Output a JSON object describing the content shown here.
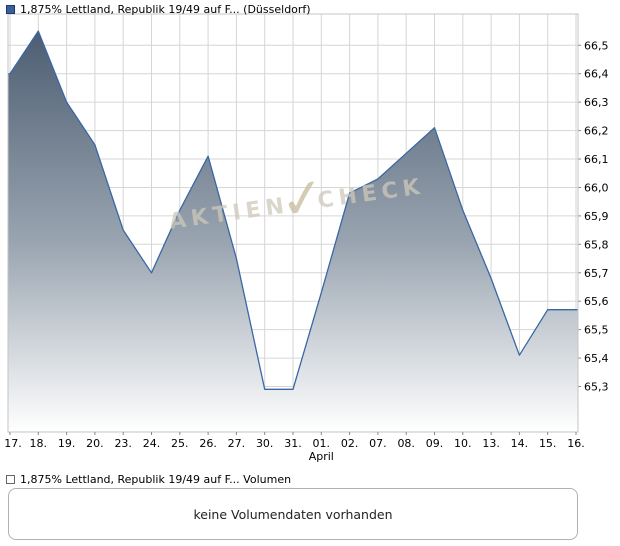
{
  "legend_top": {
    "label": "1,875% Lettland, Republik 19/49 auf F... (Düsseldorf)",
    "marker_color": "#3a5fa0"
  },
  "watermark": {
    "left": "AKTIEN",
    "check_glyph": "✓",
    "right": "CHECK"
  },
  "chart_data": {
    "type": "area",
    "title": "1,875% Lettland, Republik 19/49 auf F... (Düsseldorf)",
    "x_labels": [
      "17.",
      "18.",
      "19.",
      "20.",
      "23.",
      "24.",
      "25.",
      "26.",
      "27.",
      "30.",
      "31.",
      "01.",
      "02.",
      "07.",
      "08.",
      "09.",
      "10.",
      "13.",
      "14.",
      "15.",
      "16."
    ],
    "values": [
      66.4,
      66.55,
      66.3,
      66.15,
      65.85,
      65.7,
      65.92,
      66.11,
      65.75,
      65.29,
      65.29,
      65.63,
      65.98,
      66.03,
      66.12,
      66.21,
      65.92,
      65.68,
      65.41,
      65.57,
      65.57
    ],
    "month_label": "April",
    "month_label_index": 11,
    "y_ticks": [
      {
        "v": 66.5,
        "label": "66,5"
      },
      {
        "v": 66.4,
        "label": "66,4"
      },
      {
        "v": 66.3,
        "label": "66,3"
      },
      {
        "v": 66.2,
        "label": "66,2"
      },
      {
        "v": 66.1,
        "label": "66,1"
      },
      {
        "v": 66.0,
        "label": "66,0"
      },
      {
        "v": 65.9,
        "label": "65,9"
      },
      {
        "v": 65.8,
        "label": "65,8"
      },
      {
        "v": 65.7,
        "label": "65,7"
      },
      {
        "v": 65.6,
        "label": "65,6"
      },
      {
        "v": 65.5,
        "label": "65,5"
      },
      {
        "v": 65.4,
        "label": "65,4"
      },
      {
        "v": 65.3,
        "label": "65,3"
      }
    ],
    "ylim": [
      65.14,
      66.61
    ],
    "grid": true,
    "legend_position": "top-left",
    "line_color": "#3a67a3",
    "grid_color": "#d6d6d6",
    "frame_color": "#c4c4c4",
    "tick_color": "#888888",
    "gradient_top": "#47586d",
    "gradient_mid": "#9aa5b1",
    "gradient_bottom": "#ffffff"
  },
  "volume": {
    "legend_label": "1,875% Lettland, Republik 19/49 auf F... Volumen",
    "message": "keine Volumendaten vorhanden"
  }
}
